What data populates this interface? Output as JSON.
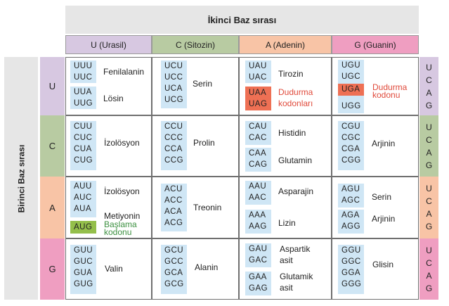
{
  "header": {
    "second_base_title": "İkinci Baz sırası",
    "first_base_title": "Birinci Baz sırası",
    "columns": [
      "U (Urasil)",
      "C (Sitozin)",
      "A (Adenin)",
      "G (Guanin)"
    ],
    "column_colors": [
      "#d7c8e1",
      "#b8cba2",
      "#f8c4a6",
      "#ef9ec1"
    ],
    "rows": [
      "U",
      "C",
      "A",
      "G"
    ],
    "row_colors": [
      "#d7c8e1",
      "#b8cba2",
      "#f8c4a6",
      "#ef9ec1"
    ],
    "third_base": [
      "U",
      "C",
      "A",
      "G"
    ]
  },
  "cells": {
    "UU": {
      "codons": [
        "UUU",
        "UUC",
        "UUA",
        "UUG"
      ],
      "aa1": "Fenilalanin",
      "aa2": "Lösin"
    },
    "UC": {
      "codons": [
        "UCU",
        "UCC",
        "UCA",
        "UCG"
      ],
      "aa1": "Serin"
    },
    "UA": {
      "codons": [
        "UAU",
        "UAC",
        "UAA",
        "UAG"
      ],
      "aa1": "Tirozin",
      "aa2": "Dudurma",
      "aa2b": "kodonları"
    },
    "UG": {
      "codons": [
        "UGU",
        "UGC",
        "UGA",
        "UGG"
      ],
      "aa1": "Dudurma",
      "aa1b": "kodonu"
    },
    "CU": {
      "codons": [
        "CUU",
        "CUC",
        "CUA",
        "CUG"
      ],
      "aa1": "İzolösyon"
    },
    "CC": {
      "codons": [
        "CCU",
        "CCC",
        "CCA",
        "CCG"
      ],
      "aa1": "Prolin"
    },
    "CA": {
      "codons": [
        "CAU",
        "CAC",
        "CAA",
        "CAG"
      ],
      "aa1": "Histidin",
      "aa2": "Glutamin"
    },
    "CG": {
      "codons": [
        "CGU",
        "CGC",
        "CGA",
        "CGG"
      ],
      "aa1": "Arjinin"
    },
    "AU": {
      "codons": [
        "AUU",
        "AUC",
        "AUA",
        "AUG"
      ],
      "aa1": "İzolösyon",
      "aa2": "Metiyonin",
      "aa3": "Başlama",
      "aa3b": "kodonu"
    },
    "AC": {
      "codons": [
        "ACU",
        "ACC",
        "ACA",
        "ACG"
      ],
      "aa1": "Treonin"
    },
    "AA": {
      "codons": [
        "AAU",
        "AAC",
        "AAA",
        "AAG"
      ],
      "aa1": "Asparajin",
      "aa2": "Lizin"
    },
    "AG": {
      "codons": [
        "AGU",
        "AGC",
        "AGA",
        "AGG"
      ],
      "aa1": "Serin",
      "aa2": "Arjinin"
    },
    "GU": {
      "codons": [
        "GUU",
        "GUC",
        "GUA",
        "GUG"
      ],
      "aa1": "Valin"
    },
    "GC": {
      "codons": [
        "GCU",
        "GCC",
        "GCA",
        "GCG"
      ],
      "aa1": "Alanin"
    },
    "GA": {
      "codons": [
        "GAU",
        "GAC",
        "GAA",
        "GAG"
      ],
      "aa1": "Aspartik",
      "aa1b": "asit",
      "aa2": "Glutamik",
      "aa2b": "asit"
    },
    "GG": {
      "codons": [
        "GGU",
        "GGC",
        "GGA",
        "GGG"
      ],
      "aa1": "Glisin"
    }
  }
}
